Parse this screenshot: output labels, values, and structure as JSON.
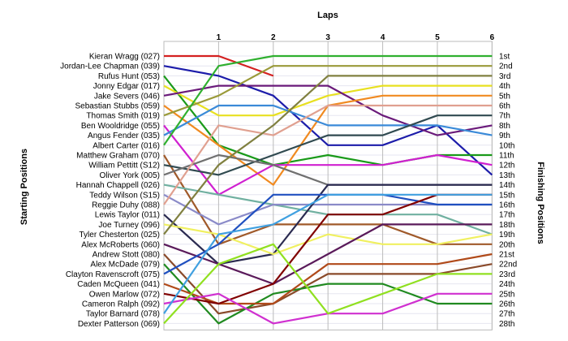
{
  "chart_data": {
    "type": "line",
    "title": "",
    "xlabel": "Laps",
    "ylabel": "Starting Positions",
    "y2label": "Finishing Positions",
    "x": [
      0,
      1,
      2,
      3,
      4,
      5,
      6
    ],
    "x_ticks": [
      "1",
      "2",
      "3",
      "4",
      "5",
      "6"
    ],
    "ylim": [
      1,
      28
    ],
    "y_inverted": true,
    "grid": true,
    "finish_labels": [
      "1st",
      "2nd",
      "3rd",
      "4th",
      "5th",
      "6th",
      "7th",
      "8th",
      "9th",
      "10th",
      "11th",
      "12th",
      "13th",
      "14th",
      "15th",
      "16th",
      "17th",
      "18th",
      "19th",
      "20th",
      "21st",
      "22nd",
      "23rd",
      "24th",
      "25th",
      "26th",
      "27th",
      "28th"
    ],
    "series": [
      {
        "name": "Kieran Wragg (027)",
        "color": "#d42020",
        "positions": [
          1,
          1,
          3
        ]
      },
      {
        "name": "Jordan-Lee Chapman (039)",
        "color": "#1c1caa",
        "positions": [
          2,
          3,
          5,
          10,
          10,
          8,
          13
        ]
      },
      {
        "name": "Rufus Hunt (053)",
        "color": "#1a9a1a",
        "positions": [
          3,
          10,
          12,
          11,
          12,
          11,
          11
        ]
      },
      {
        "name": "Jonny Edgar (017)",
        "color": "#e8e020",
        "positions": [
          4,
          7,
          7,
          5,
          4,
          4,
          4
        ]
      },
      {
        "name": "Jake Severs (046)",
        "color": "#6a1a7a",
        "positions": [
          5,
          4,
          4,
          4,
          7,
          9,
          8
        ]
      },
      {
        "name": "Sebastian Stubbs (059)",
        "color": "#f08a20",
        "positions": [
          6,
          10,
          14,
          6,
          5,
          5,
          5
        ]
      },
      {
        "name": "Thomas Smith (019)",
        "color": "#9a9a3a",
        "positions": [
          7,
          5,
          2,
          2,
          2,
          2,
          2
        ]
      },
      {
        "name": "Ben Wooldridge (055)",
        "color": "#d020d0",
        "positions": [
          8,
          15,
          12,
          12,
          12,
          11,
          12
        ]
      },
      {
        "name": "Angus Fender (035)",
        "color": "#3a8ad8",
        "positions": [
          9,
          6,
          6,
          8,
          8,
          8,
          9
        ]
      },
      {
        "name": "Albert Carter (016)",
        "color": "#30b030",
        "positions": [
          10,
          2,
          1,
          1,
          1,
          1,
          1
        ]
      },
      {
        "name": "Matthew Graham (070)",
        "color": "#a05a2a",
        "positions": [
          11,
          20,
          18,
          18,
          18,
          20,
          20
        ]
      },
      {
        "name": "William Pettitt (S12)",
        "color": "#304a50",
        "positions": [
          12,
          13,
          11,
          9,
          9,
          7,
          7
        ]
      },
      {
        "name": "Oliver York (005)",
        "color": "#707070",
        "positions": [
          13,
          11,
          12,
          14,
          14,
          14,
          14
        ]
      },
      {
        "name": "Hannah Chappell (026)",
        "color": "#70b0a0",
        "positions": [
          14,
          15,
          16,
          17,
          17,
          17,
          19
        ]
      },
      {
        "name": "Teddy Wilson (S15)",
        "color": "#8a8ac8",
        "positions": [
          15,
          18,
          16,
          16,
          16,
          16,
          16
        ]
      },
      {
        "name": "Reggie Duhy (088)",
        "color": "#e0a090",
        "positions": [
          16,
          8,
          9,
          6,
          6,
          6,
          6
        ]
      },
      {
        "name": "Lewis Taylor (011)",
        "color": "#2a2a50",
        "positions": [
          17,
          22,
          21,
          14,
          14,
          14,
          14
        ]
      },
      {
        "name": "Joe Turney (096)",
        "color": "#f0f060",
        "positions": [
          18,
          19,
          21,
          19,
          20,
          20,
          19
        ]
      },
      {
        "name": "Tyler Chesterton (025)",
        "color": "#808040",
        "positions": [
          19,
          12,
          8,
          3,
          3,
          3,
          3
        ]
      },
      {
        "name": "Alex McRoberts (060)",
        "color": "#5a1a5a",
        "positions": [
          20,
          22,
          24,
          21,
          18,
          18,
          18
        ]
      },
      {
        "name": "Andrew Stott (080)",
        "color": "#8a4a2a",
        "positions": [
          21,
          27,
          26,
          23,
          23,
          23,
          22
        ]
      },
      {
        "name": "Alex McDade (079)",
        "color": "#208a20",
        "positions": [
          22,
          28,
          25,
          24,
          24,
          26,
          26
        ]
      },
      {
        "name": "Clayton Ravenscroft (075)",
        "color": "#2050c0",
        "positions": [
          23,
          20,
          15,
          15,
          15,
          16,
          16
        ]
      },
      {
        "name": "Caden McQueen (041)",
        "color": "#b04a1a",
        "positions": [
          24,
          26,
          26,
          22,
          22,
          22,
          21
        ]
      },
      {
        "name": "Owen Marlow (072)",
        "color": "#800000",
        "positions": [
          25,
          26,
          24,
          17,
          17,
          15,
          15
        ]
      },
      {
        "name": "Cameron Ralph (092)",
        "color": "#d030d0",
        "positions": [
          26,
          25,
          28,
          27,
          27,
          25,
          25
        ]
      },
      {
        "name": "Taylor Barnard (078)",
        "color": "#40a0e0",
        "positions": [
          27,
          19,
          18,
          15,
          15,
          15,
          15
        ]
      },
      {
        "name": "Dexter Patterson (069)",
        "color": "#90e020",
        "positions": [
          28,
          22,
          20,
          27,
          25,
          23,
          23
        ]
      }
    ]
  }
}
